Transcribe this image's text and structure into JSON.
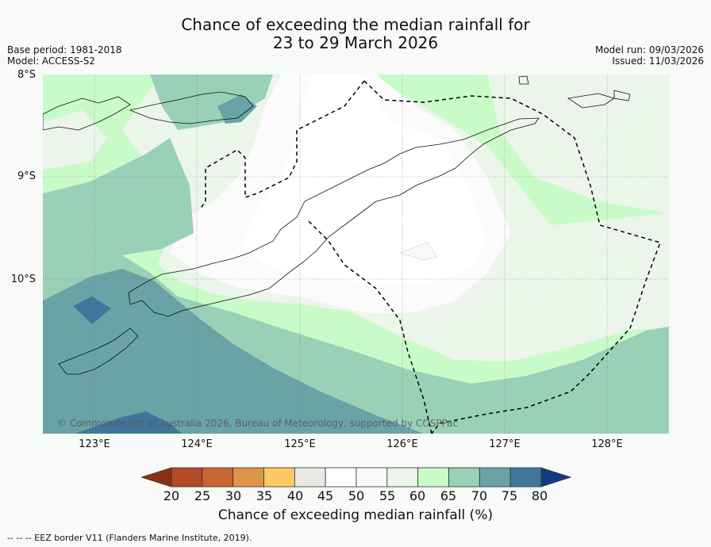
{
  "title": {
    "line1": "Chance of exceeding the median rainfall for",
    "line2": "23 to 29 March 2026"
  },
  "meta": {
    "base_period": "Base period: 1981-2018",
    "model": "Model: ACCESS-S2",
    "model_run": "Model run: 09/03/2026",
    "issued": "Issued: 11/03/2026"
  },
  "axes": {
    "lat": [
      "8°S",
      "9°S",
      "10°S"
    ],
    "lon": [
      "123°E",
      "124°E",
      "125°E",
      "126°E",
      "127°E",
      "128°E"
    ]
  },
  "colorbar": {
    "ticks": [
      "20",
      "25",
      "30",
      "35",
      "40",
      "45",
      "50",
      "55",
      "60",
      "65",
      "70",
      "75",
      "80"
    ],
    "colors": [
      "#8b2f14",
      "#b24a27",
      "#c96532",
      "#e0934a",
      "#fdc964",
      "#e9e8e3",
      "#ffffff",
      "#f8f9f8",
      "#ebf5ea",
      "#c9fbc8",
      "#99d0b7",
      "#6aa3a6",
      "#3f779b",
      "#123c82"
    ],
    "label": "Chance of exceeding median rainfall (%)"
  },
  "footnote": "--  --  -- EEZ border V11 (Flanders Marine Institute, 2019).",
  "copyright": "© Commonwealth of Australia 2026, Bureau of Meteorology, supported by COSPPac",
  "legend_line": "EEZ border"
}
